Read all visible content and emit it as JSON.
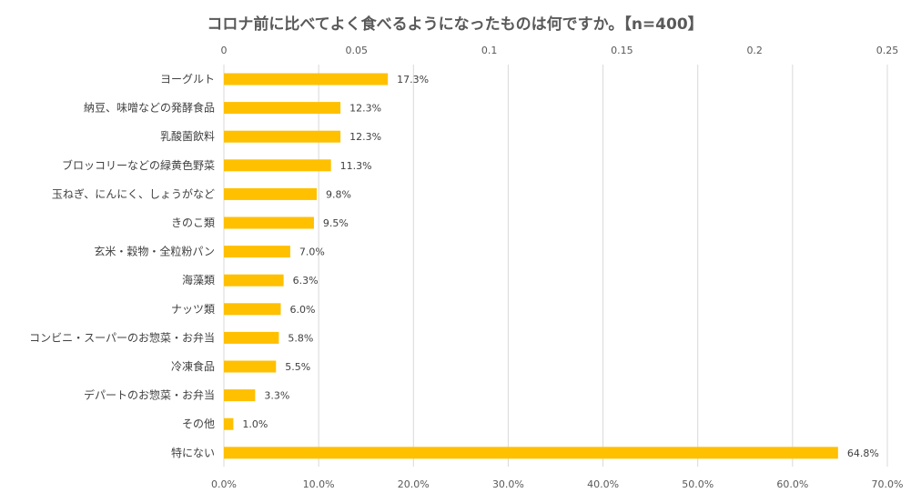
{
  "chart_data": {
    "type": "bar",
    "orientation": "horizontal",
    "title": "コロナ前に比べてよく食べるようになったものは何ですか。【n=400】",
    "categories": [
      "ヨーグルト",
      "納豆、味噌などの発酵食品",
      "乳酸菌飲料",
      "ブロッコリーなどの緑黄色野菜",
      "玉ねぎ、にんにく、しょうがなど",
      "きのこ類",
      "玄米・穀物・全粒粉パン",
      "海藻類",
      "ナッツ類",
      "コンビニ・スーパーのお惣菜・お弁当",
      "冷凍食品",
      "デパートのお惣菜・お弁当",
      "その他",
      "特にない"
    ],
    "values": [
      17.3,
      12.3,
      12.3,
      11.3,
      9.8,
      9.5,
      7.0,
      6.3,
      6.0,
      5.8,
      5.5,
      3.3,
      1.0,
      64.8
    ],
    "data_labels": [
      "17.3%",
      "12.3%",
      "12.3%",
      "11.3%",
      "9.8%",
      "9.5%",
      "7.0%",
      "6.3%",
      "6.0%",
      "5.8%",
      "5.5%",
      "3.3%",
      "1.0%",
      "64.8%"
    ],
    "x_bottom": {
      "range": [
        0,
        70
      ],
      "ticks": [
        0,
        10,
        20,
        30,
        40,
        50,
        60,
        70
      ],
      "tick_labels": [
        "0.0%",
        "10.0%",
        "20.0%",
        "30.0%",
        "40.0%",
        "50.0%",
        "60.0%",
        "70.0%"
      ]
    },
    "x_top": {
      "range": [
        0,
        0.25
      ],
      "ticks": [
        0,
        0.05,
        0.1,
        0.15,
        0.2,
        0.25
      ],
      "tick_labels": [
        "0",
        "0.05",
        "0.1",
        "0.15",
        "0.2",
        "0.25"
      ]
    },
    "grid": true,
    "legend": "none",
    "colors": {
      "bar": "#FFC000",
      "grid": "#D9D9D9"
    }
  }
}
